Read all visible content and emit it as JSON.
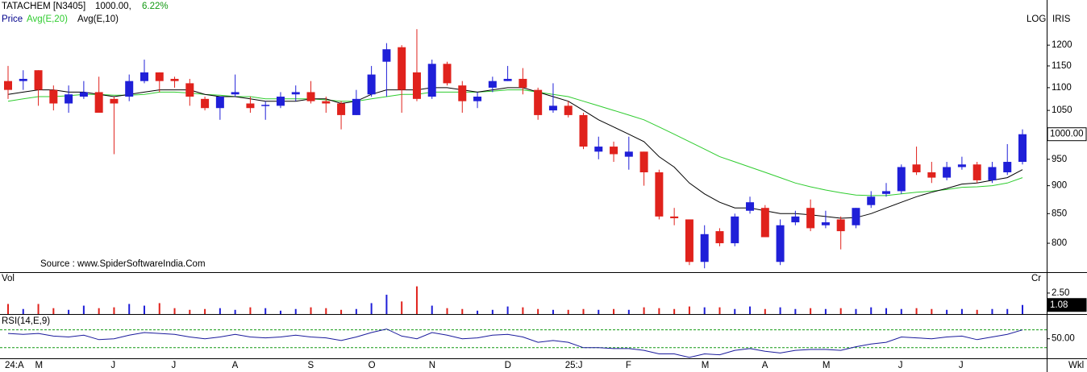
{
  "chart_data": [
    {
      "type": "candlestick",
      "name": "Price",
      "title": "TATACHEM [N3405]",
      "last_label": "1000.00,",
      "change": "6.22%",
      "scale_label": "LOG",
      "provider": "IRIS",
      "source": "Source : www.SpiderSoftwareIndia.Com",
      "period": "Wkl",
      "log_scale": true,
      "up_color": "#1f1fd8",
      "down_color": "#e0221c",
      "change_color": "#119911",
      "name_color": "#00008b",
      "categories": [
        "24:A",
        null,
        "M",
        null,
        null,
        null,
        null,
        "J",
        null,
        null,
        null,
        "J",
        null,
        null,
        null,
        "A",
        null,
        null,
        null,
        null,
        "S",
        null,
        null,
        null,
        "O",
        null,
        null,
        null,
        "N",
        null,
        null,
        null,
        null,
        "D",
        null,
        null,
        null,
        "25:J",
        null,
        null,
        null,
        "F",
        null,
        null,
        null,
        null,
        "M",
        null,
        null,
        null,
        "A",
        null,
        null,
        null,
        "M",
        null,
        null,
        null,
        null,
        "J",
        null,
        null,
        null,
        "J",
        null,
        null,
        null,
        null
      ],
      "open": [
        1115,
        1115,
        1140,
        1095,
        1065,
        1080,
        1090,
        1075,
        1080,
        1115,
        1135,
        1120,
        1110,
        1075,
        1055,
        1085,
        1065,
        1060,
        1060,
        1085,
        1090,
        1070,
        1065,
        1040,
        1085,
        1160,
        1195,
        1135,
        1080,
        1155,
        1105,
        1070,
        1100,
        1115,
        1120,
        1095,
        1050,
        1060,
        1040,
        965,
        975,
        955,
        965,
        925,
        845,
        840,
        770,
        820,
        800,
        855,
        860,
        770,
        835,
        860,
        830,
        840,
        830,
        865,
        885,
        890,
        940,
        925,
        915,
        935,
        940,
        910,
        925,
        945
      ],
      "high": [
        1150,
        1140,
        1140,
        1105,
        1105,
        1115,
        1125,
        1080,
        1130,
        1165,
        1135,
        1125,
        1120,
        1080,
        1080,
        1130,
        1080,
        1070,
        1090,
        1105,
        1115,
        1080,
        1070,
        1095,
        1150,
        1205,
        1200,
        1240,
        1165,
        1160,
        1115,
        1090,
        1125,
        1150,
        1145,
        1100,
        1110,
        1070,
        1045,
        995,
        985,
        995,
        965,
        930,
        860,
        840,
        830,
        825,
        850,
        880,
        865,
        840,
        855,
        875,
        855,
        845,
        860,
        890,
        905,
        940,
        975,
        945,
        945,
        955,
        945,
        945,
        980,
        1010
      ],
      "low": [
        1075,
        1095,
        1060,
        1050,
        1045,
        1075,
        1045,
        960,
        1070,
        1110,
        1090,
        1100,
        1060,
        1050,
        1030,
        1080,
        1045,
        1030,
        1055,
        1070,
        1065,
        1045,
        1010,
        1040,
        1080,
        1080,
        1045,
        1070,
        1075,
        1105,
        1045,
        1055,
        1090,
        1115,
        1085,
        1030,
        1045,
        1035,
        970,
        950,
        945,
        930,
        900,
        840,
        830,
        765,
        760,
        795,
        795,
        850,
        810,
        765,
        830,
        820,
        825,
        790,
        825,
        860,
        880,
        885,
        920,
        905,
        910,
        930,
        905,
        905,
        920,
        940
      ],
      "close": [
        1095,
        1120,
        1095,
        1065,
        1085,
        1090,
        1045,
        1065,
        1115,
        1135,
        1115,
        1115,
        1080,
        1055,
        1080,
        1090,
        1055,
        1062,
        1080,
        1090,
        1070,
        1065,
        1040,
        1075,
        1130,
        1190,
        1095,
        1075,
        1155,
        1110,
        1070,
        1080,
        1115,
        1120,
        1100,
        1040,
        1060,
        1040,
        975,
        975,
        960,
        965,
        925,
        845,
        842,
        770,
        815,
        800,
        845,
        870,
        810,
        830,
        845,
        825,
        835,
        820,
        860,
        880,
        890,
        935,
        925,
        915,
        935,
        940,
        910,
        935,
        945,
        1000
      ],
      "series": [
        {
          "name": "Avg(E,20)",
          "color": "#2ecc2e",
          "values": [
            1070,
            1075,
            1080,
            1080,
            1082,
            1085,
            1085,
            1083,
            1083,
            1085,
            1090,
            1090,
            1088,
            1085,
            1083,
            1080,
            1080,
            1075,
            1075,
            1075,
            1075,
            1073,
            1070,
            1070,
            1075,
            1080,
            1085,
            1085,
            1090,
            1090,
            1090,
            1090,
            1092,
            1095,
            1095,
            1090,
            1085,
            1080,
            1070,
            1060,
            1050,
            1040,
            1030,
            1015,
            1000,
            985,
            970,
            955,
            945,
            935,
            925,
            915,
            905,
            898,
            892,
            887,
            883,
            882,
            882,
            885,
            888,
            890,
            893,
            897,
            898,
            900,
            905,
            915
          ]
        },
        {
          "name": "Avg(E,10)",
          "color": "#000000",
          "values": [
            1085,
            1090,
            1095,
            1095,
            1090,
            1090,
            1085,
            1080,
            1085,
            1090,
            1095,
            1095,
            1095,
            1085,
            1080,
            1080,
            1075,
            1070,
            1070,
            1070,
            1075,
            1075,
            1065,
            1070,
            1085,
            1095,
            1095,
            1095,
            1100,
            1100,
            1095,
            1090,
            1095,
            1100,
            1100,
            1090,
            1080,
            1070,
            1050,
            1030,
            1015,
            1000,
            985,
            955,
            935,
            905,
            885,
            870,
            860,
            860,
            855,
            850,
            850,
            848,
            845,
            842,
            843,
            850,
            860,
            870,
            880,
            888,
            895,
            903,
            905,
            910,
            915,
            930
          ]
        }
      ],
      "ylim": [
        754,
        1282
      ],
      "yticks": [
        800,
        850,
        900,
        950,
        1000,
        1050,
        1100,
        1150,
        1200
      ],
      "last_value": {
        "value": 1000,
        "label": "1000.00"
      }
    },
    {
      "type": "bar",
      "title": "Vol",
      "unit": "Cr",
      "values": [
        1.2,
        0.6,
        1.2,
        0.7,
        0.5,
        1.0,
        0.7,
        0.8,
        1.2,
        1.0,
        1.3,
        0.7,
        0.5,
        0.6,
        0.7,
        0.5,
        0.8,
        0.7,
        0.4,
        0.6,
        0.8,
        0.7,
        0.5,
        0.6,
        1.3,
        2.3,
        1.5,
        3.3,
        1.0,
        0.7,
        0.6,
        0.4,
        0.5,
        0.9,
        0.8,
        0.6,
        0.5,
        0.5,
        0.6,
        0.5,
        0.6,
        0.5,
        0.8,
        0.7,
        0.6,
        0.9,
        0.8,
        0.8,
        0.6,
        0.9,
        0.6,
        0.8,
        0.6,
        0.7,
        0.6,
        0.7,
        0.6,
        0.8,
        0.7,
        0.6,
        0.7,
        0.6,
        0.5,
        0.6,
        0.5,
        0.6,
        0.6,
        1.08
      ],
      "ylim": [
        0,
        4.8
      ],
      "yticks": [
        {
          "value": 2.5,
          "label": "2.50"
        }
      ],
      "last_value": {
        "value": 1.08,
        "label": "1.08"
      }
    },
    {
      "type": "line",
      "title": "RSI(14,E,9)",
      "color": "#1a1a9c",
      "ref_color": "#119911",
      "values": [
        56,
        55,
        56,
        53,
        52,
        54,
        49,
        50,
        54,
        57,
        56,
        55,
        52,
        50,
        52,
        55,
        52,
        51,
        52,
        54,
        52,
        51,
        48,
        52,
        57,
        61,
        53,
        50,
        57,
        54,
        50,
        51,
        54,
        55,
        52,
        46,
        48,
        46,
        40,
        40,
        39,
        39,
        37,
        33,
        33,
        29,
        33,
        32,
        37,
        39,
        36,
        34,
        37,
        38,
        38,
        37,
        41,
        44,
        46,
        52,
        51,
        50,
        52,
        53,
        49,
        52,
        55,
        60
      ],
      "ref_lines": [
        60,
        40
      ],
      "ylim": [
        28,
        76
      ],
      "yticks": [
        {
          "value": 50,
          "label": "50.00"
        }
      ]
    }
  ]
}
